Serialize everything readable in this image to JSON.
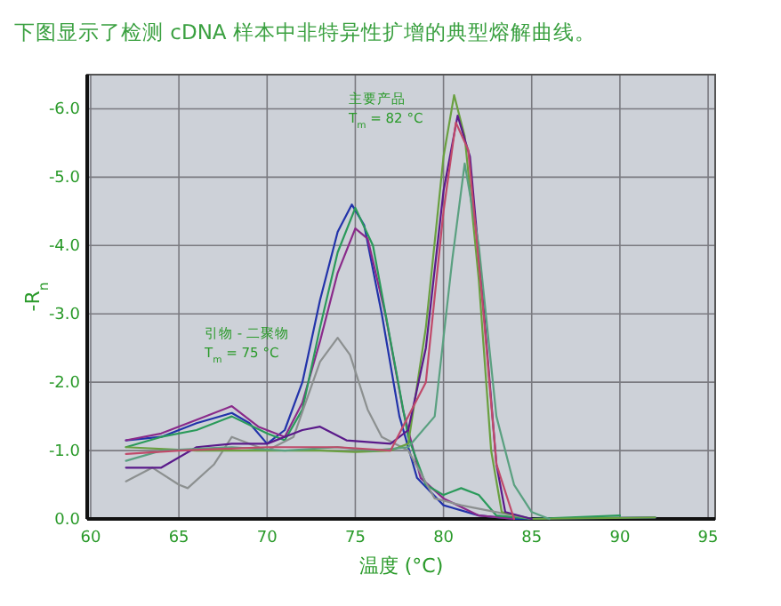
{
  "chart_data": {
    "type": "line",
    "title": "下图显示了检测 cDNA 样本中非特异性扩增的典型熔解曲线。",
    "xlabel": "温度 (°C)",
    "ylabel": "-R$_{n}$",
    "xlim": [
      59.8,
      95.4
    ],
    "ylim": [
      0,
      -6.5
    ],
    "xticks": [
      60,
      65,
      70,
      75,
      80,
      85,
      90,
      95
    ],
    "yticks": [
      {
        "value": 0,
        "label": "0.0"
      },
      {
        "value": -1,
        "label": "-1.0"
      },
      {
        "value": -2,
        "label": "-2.0"
      },
      {
        "value": -3,
        "label": "-3.0"
      },
      {
        "value": -4,
        "label": "-4.0"
      },
      {
        "value": -5,
        "label": "-5.0"
      },
      {
        "value": -6,
        "label": "-6.0"
      }
    ],
    "grid": true,
    "annotations": [
      "主要产品\nT$_{m}$ = 82 °C",
      "引物 - 二聚物\nT$_{m}$ = 75 °C"
    ],
    "series": [
      {
        "color": "#2233aa",
        "x": [
          62,
          64,
          66,
          68,
          69,
          70,
          71,
          72,
          73,
          74,
          74.8,
          75.5,
          76.5,
          77.5,
          78.5,
          80,
          82,
          84,
          92
        ],
        "values": [
          -1.15,
          -1.2,
          -1.4,
          -1.55,
          -1.4,
          -1.1,
          -1.3,
          -2.0,
          -3.2,
          -4.2,
          -4.6,
          -4.3,
          -3.0,
          -1.5,
          -0.6,
          -0.2,
          -0.05,
          0,
          -0.02
        ]
      },
      {
        "color": "#8a2a8a",
        "x": [
          62,
          64,
          66,
          68,
          69.5,
          71,
          72,
          73,
          74,
          75,
          75.7,
          76.7,
          77.7,
          78.7,
          80,
          82,
          84
        ],
        "values": [
          -1.15,
          -1.25,
          -1.45,
          -1.65,
          -1.35,
          -1.2,
          -1.7,
          -2.6,
          -3.6,
          -4.25,
          -4.1,
          -3.0,
          -1.6,
          -0.6,
          -0.3,
          -0.05,
          0
        ]
      },
      {
        "color": "#2a9a5a",
        "x": [
          62,
          64,
          66,
          68,
          70,
          71,
          72,
          73,
          74,
          75,
          76,
          77,
          78,
          79,
          80,
          81,
          82,
          83,
          85,
          90
        ],
        "values": [
          -1.05,
          -1.2,
          -1.3,
          -1.5,
          -1.25,
          -1.15,
          -1.6,
          -2.8,
          -3.9,
          -4.55,
          -4.0,
          -2.6,
          -1.2,
          -0.5,
          -0.35,
          -0.45,
          -0.35,
          -0.05,
          0,
          -0.05
        ]
      },
      {
        "color": "#8c9090",
        "x": [
          62,
          63.5,
          65,
          65.5,
          67,
          68,
          70,
          71.5,
          73,
          74,
          74.7,
          75.7,
          76.5,
          78,
          79.5,
          81,
          83,
          85
        ],
        "values": [
          -0.55,
          -0.75,
          -0.5,
          -0.45,
          -0.8,
          -1.2,
          -1.0,
          -1.2,
          -2.3,
          -2.65,
          -2.4,
          -1.6,
          -1.2,
          -1.0,
          -0.3,
          -0.2,
          -0.1,
          0
        ]
      },
      {
        "color": "#6aa040",
        "x": [
          62,
          66,
          70,
          73,
          75,
          77,
          78,
          79,
          80,
          80.6,
          81.2,
          82,
          82.7,
          83.3,
          85,
          92
        ],
        "values": [
          -1.05,
          -1.0,
          -1.0,
          -1.0,
          -0.98,
          -1.0,
          -1.1,
          -2.8,
          -5.3,
          -6.2,
          -5.6,
          -3.5,
          -1.0,
          -0.1,
          0,
          -0.02
        ]
      },
      {
        "color": "#5a1a8a",
        "x": [
          62,
          64,
          66,
          68,
          70,
          72,
          73,
          74.5,
          77,
          78,
          79,
          80,
          80.8,
          81.5,
          82.3,
          83,
          83.5,
          85
        ],
        "values": [
          -0.75,
          -0.75,
          -1.05,
          -1.1,
          -1.1,
          -1.3,
          -1.35,
          -1.15,
          -1.1,
          -1.3,
          -2.5,
          -4.8,
          -5.9,
          -5.3,
          -3.0,
          -0.8,
          -0.1,
          0
        ]
      },
      {
        "color": "#5aa080",
        "x": [
          62,
          64,
          68,
          71,
          74,
          76,
          78,
          79.5,
          80.5,
          81.2,
          82,
          83,
          84,
          85,
          86
        ],
        "values": [
          -0.85,
          -1.0,
          -1.05,
          -1.0,
          -1.05,
          -1.0,
          -1.05,
          -1.5,
          -3.8,
          -5.2,
          -4.0,
          -1.5,
          -0.5,
          -0.1,
          0
        ]
      },
      {
        "color": "#c04a6a",
        "x": [
          62,
          65,
          70,
          74,
          77,
          79,
          80,
          80.7,
          81.4,
          82.2,
          83,
          84
        ],
        "values": [
          -0.95,
          -1.0,
          -1.05,
          -1.05,
          -1.0,
          -2.0,
          -4.5,
          -5.8,
          -5.4,
          -3.2,
          -0.8,
          0
        ]
      }
    ]
  }
}
